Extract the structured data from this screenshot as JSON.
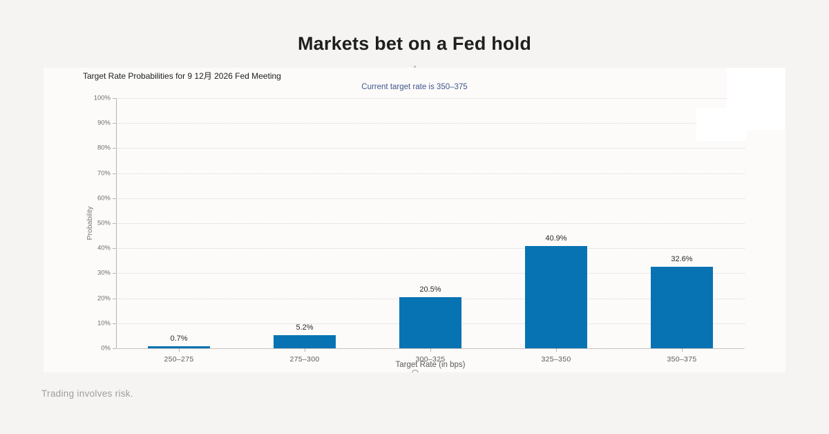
{
  "page": {
    "title": "Markets bet on a Fed hold",
    "footer": "Trading involves risk."
  },
  "chart_data": {
    "type": "bar",
    "title": "Target Rate Probabilities for 9 12月 2026 Fed Meeting",
    "subtitle": "Current target rate is 350–375",
    "xlabel": "Target Rate (in bps)",
    "ylabel": "Probability",
    "categories": [
      "250–275",
      "275–300",
      "300–325",
      "325–350",
      "350–375"
    ],
    "values": [
      0.7,
      5.2,
      20.5,
      40.9,
      32.6
    ],
    "value_labels": [
      "0.7%",
      "5.2%",
      "20.5%",
      "40.9%",
      "32.6%"
    ],
    "ylim": [
      0,
      100
    ],
    "ytick_step": 10,
    "ytick_suffix": "%",
    "grid": "dotted-horizontal",
    "legend": "none",
    "colors": {
      "bar": "#0873b3",
      "subtitle": "#41568c",
      "grid": "#d6d5d3",
      "axis": "#b3b2b0"
    }
  }
}
